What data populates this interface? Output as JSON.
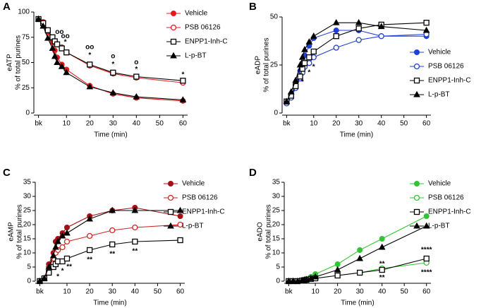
{
  "chart_data": [
    {
      "type": "line",
      "panel": "A",
      "ylabel": [
        "eATP",
        "% of total purines"
      ],
      "xlabel": "Time (min)",
      "x": [
        -2,
        0,
        2,
        4,
        5,
        6,
        8,
        10,
        20,
        30,
        40,
        60
      ],
      "xlim": [
        -4,
        62
      ],
      "xticks": [
        {
          "value": -2,
          "label": "bk"
        },
        10,
        20,
        30,
        40,
        50,
        60
      ],
      "ylim": [
        0,
        100
      ],
      "yticks": [
        0,
        25,
        50,
        75,
        100
      ],
      "legend": "upper right",
      "series": [
        {
          "name": "Vehicle",
          "color": "#e41a1c",
          "marker": "filled-circle",
          "values": [
            93,
            90,
            80,
            70,
            62,
            55,
            48,
            43,
            27,
            19,
            15,
            12
          ]
        },
        {
          "name": "PSB 06126",
          "color": "#e41a1c",
          "marker": "open-circle",
          "values": [
            93,
            90,
            82,
            74,
            70,
            68,
            65,
            60,
            47,
            39,
            35,
            30
          ]
        },
        {
          "name": "ENPP1-Inh-C",
          "color": "#000000",
          "marker": "open-square",
          "values": [
            93,
            89,
            82,
            75,
            71,
            68,
            64,
            60,
            48,
            40,
            36,
            32
          ]
        },
        {
          "name": "L-p-BT",
          "color": "#000000",
          "marker": "triangle",
          "values": [
            93,
            86,
            74,
            64,
            56,
            50,
            46,
            40,
            26,
            20,
            16,
            13
          ]
        }
      ],
      "annotations": [
        {
          "text": "oo",
          "x": 7,
          "y": 80
        },
        {
          "text": "oo",
          "x": 9.5,
          "y": 76
        },
        {
          "text": "*",
          "x": 9.5,
          "y": 70
        },
        {
          "text": "oo",
          "x": 20,
          "y": 65
        },
        {
          "text": "*",
          "x": 20,
          "y": 57
        },
        {
          "text": "o",
          "x": 30,
          "y": 56
        },
        {
          "text": "*",
          "x": 30,
          "y": 48
        },
        {
          "text": "o",
          "x": 40,
          "y": 50
        },
        {
          "text": "*",
          "x": 40,
          "y": 43
        },
        {
          "text": "*",
          "x": 60,
          "y": 38
        }
      ]
    },
    {
      "type": "line",
      "panel": "B",
      "ylabel": [
        "eADP",
        "% of total purines"
      ],
      "xlabel": "Time (min)",
      "x": [
        -2,
        0,
        2,
        4,
        5,
        6,
        8,
        10,
        20,
        30,
        40,
        60
      ],
      "xlim": [
        -4,
        62
      ],
      "xticks": [
        {
          "value": -2,
          "label": "bk"
        },
        10,
        20,
        30,
        40,
        50,
        60
      ],
      "ylim": [
        0,
        50
      ],
      "yticks": [
        0,
        25,
        50
      ],
      "legend": "center right",
      "series": [
        {
          "name": "Vehicle",
          "color": "#1f3fd6",
          "marker": "filled-circle",
          "values": [
            6,
            9,
            15,
            22,
            26,
            30,
            35,
            39,
            43,
            43,
            40,
            40
          ]
        },
        {
          "name": "PSB 06126",
          "color": "#1f3fd6",
          "marker": "open-circle",
          "values": [
            5,
            8,
            13,
            18,
            21,
            24,
            26,
            29,
            34,
            38,
            40,
            41
          ]
        },
        {
          "name": "ENPP1-Inh-C",
          "color": "#000000",
          "marker": "open-square",
          "values": [
            6,
            9,
            14,
            19,
            23,
            26,
            29,
            32,
            40,
            44,
            46,
            47
          ]
        },
        {
          "name": "L-p-BT",
          "color": "#000000",
          "marker": "triangle",
          "values": [
            6,
            11,
            17,
            25,
            29,
            33,
            37,
            40,
            47,
            47,
            45,
            43
          ]
        }
      ],
      "annotations": [
        {
          "text": "*",
          "x": 5,
          "y": 16
        },
        {
          "text": "*",
          "x": 8,
          "y": 21
        },
        {
          "text": "*",
          "x": 10,
          "y": 24
        }
      ]
    },
    {
      "type": "line",
      "panel": "C",
      "ylabel": [
        "eAMP",
        "% of total purines"
      ],
      "xlabel": "Time (min)",
      "x": [
        -2,
        0,
        2,
        4,
        5,
        6,
        8,
        10,
        20,
        30,
        40,
        60
      ],
      "xlim": [
        -4,
        62
      ],
      "xticks": [
        {
          "value": -2,
          "label": "bk"
        },
        10,
        20,
        30,
        40,
        50,
        60
      ],
      "ylim": [
        0,
        35
      ],
      "yticks": [
        0,
        5,
        10,
        15,
        20,
        25,
        30,
        35
      ],
      "legend": "upper right",
      "series": [
        {
          "name": "Vehicle",
          "color": "#a50f15",
          "marker": "filled-circle",
          "values": [
            0,
            1,
            6,
            10,
            14,
            15,
            17,
            19,
            23,
            25,
            26,
            23
          ]
        },
        {
          "name": "PSB 06126",
          "color": "#c8281e",
          "marker": "open-circle",
          "values": [
            0,
            1,
            5,
            8,
            10,
            11,
            12,
            14,
            16,
            18,
            19,
            20
          ]
        },
        {
          "name": "ENPP1-Inh-C",
          "color": "#000000",
          "marker": "open-square",
          "values": [
            0,
            1,
            3,
            5,
            6,
            7,
            7,
            8,
            11,
            13,
            14,
            14.5
          ]
        },
        {
          "name": "L-p-BT",
          "color": "#000000",
          "marker": "triangle",
          "values": [
            0,
            1,
            5,
            9,
            12,
            14,
            16,
            17,
            22,
            25,
            25,
            25
          ]
        }
      ],
      "annotations": [
        {
          "text": "*",
          "x": 6,
          "y": 1.5
        },
        {
          "text": "*",
          "x": 8,
          "y": 3.5
        },
        {
          "text": "**",
          "x": 11,
          "y": 5
        },
        {
          "text": "**",
          "x": 20,
          "y": 7.5
        },
        {
          "text": "**",
          "x": 30,
          "y": 9.5
        },
        {
          "text": "**",
          "x": 40,
          "y": 10.5
        }
      ]
    },
    {
      "type": "line",
      "panel": "D",
      "ylabel": [
        "eADO",
        "% of total purines"
      ],
      "xlabel": "Time (min)",
      "x": [
        -2,
        0,
        2,
        4,
        5,
        6,
        8,
        10,
        20,
        30,
        40,
        60
      ],
      "xlim": [
        -4,
        62
      ],
      "xticks": [
        {
          "value": -2,
          "label": "bk"
        },
        10,
        20,
        30,
        40,
        50,
        60
      ],
      "ylim": [
        0,
        35
      ],
      "yticks": [
        0,
        5,
        10,
        15,
        20,
        25,
        30,
        35
      ],
      "legend": "upper right",
      "series": [
        {
          "name": "Vehicle",
          "color": "#33c433",
          "marker": "filled-circle",
          "values": [
            0,
            0,
            0,
            0.3,
            0.5,
            0.8,
            1.5,
            2.5,
            6,
            11,
            15,
            23
          ]
        },
        {
          "name": "PSB 06126",
          "color": "#33c433",
          "marker": "open-circle",
          "values": [
            0,
            0,
            0,
            0.2,
            0.3,
            0.5,
            0.8,
            1,
            2,
            3,
            4.5,
            6.5
          ]
        },
        {
          "name": "ENPP1-Inh-C",
          "color": "#000000",
          "marker": "open-square",
          "values": [
            0,
            0,
            0,
            0.2,
            0.3,
            0.5,
            0.8,
            1,
            2,
            3,
            4,
            8
          ]
        },
        {
          "name": "L-p-BT",
          "color": "#000000",
          "marker": "triangle",
          "values": [
            0,
            0,
            0,
            0.3,
            0.4,
            0.6,
            1,
            1.5,
            4,
            8,
            12,
            19.5
          ]
        }
      ],
      "annotations": [
        {
          "text": "**",
          "x": 40,
          "y": 6
        },
        {
          "text": "**",
          "x": 40,
          "y": 1.2
        },
        {
          "text": "****",
          "x": 60,
          "y": 11
        },
        {
          "text": "****",
          "x": 60,
          "y": 3
        }
      ]
    }
  ]
}
